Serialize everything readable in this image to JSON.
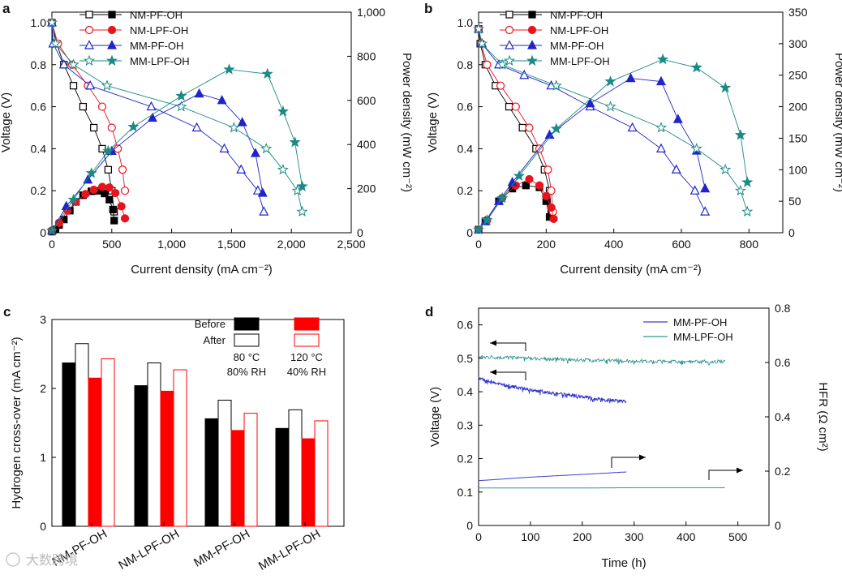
{
  "watermark": "大数跨境",
  "chart_data": [
    {
      "panel": "a",
      "type": "line",
      "xlabel": "Current density (mA cm⁻²)",
      "ylabel": "Voltage (V)",
      "y2label": "Power density (mW cm⁻²)",
      "xlim": [
        0,
        2500
      ],
      "ylim": [
        0,
        1.05
      ],
      "y2lim": [
        0,
        1000
      ],
      "xticks": [
        0,
        500,
        1000,
        1500,
        2000,
        2500
      ],
      "xtick_labels": [
        "0",
        "500",
        "1,000",
        "1,500",
        "2,000",
        "2,500"
      ],
      "yticks": [
        0,
        0.2,
        0.4,
        0.6,
        0.8,
        1.0
      ],
      "ytick_labels": [
        "0",
        "0.2",
        "0.4",
        "0.6",
        "0.8",
        "1.0"
      ],
      "y2ticks": [
        0,
        200,
        400,
        600,
        800,
        1000
      ],
      "y2tick_labels": [
        "0",
        "200",
        "400",
        "600",
        "800",
        "1,000"
      ],
      "legend": [
        {
          "name": "NM-PF-OH",
          "color": "#000000",
          "marker": "square"
        },
        {
          "name": "NM-LPF-OH",
          "color": "#e8141c",
          "marker": "circle"
        },
        {
          "name": "MM-PF-OH",
          "color": "#1f25c8",
          "marker": "triangle"
        },
        {
          "name": "MM-LPF-OH",
          "color": "#1a8a84",
          "marker": "star"
        }
      ],
      "series": [
        {
          "name": "NM-PF-OH",
          "color": "#000000",
          "marker": "square",
          "kind": "voltage",
          "x": [
            0,
            40,
            100,
            180,
            260,
            350,
            420,
            470,
            500,
            520
          ],
          "y": [
            1.0,
            0.9,
            0.8,
            0.7,
            0.6,
            0.5,
            0.4,
            0.3,
            0.2,
            0.1
          ]
        },
        {
          "name": "NM-PF-OH",
          "color": "#000000",
          "marker": "square",
          "kind": "power",
          "x": [
            0,
            30,
            60,
            100,
            150,
            200,
            260,
            330,
            390,
            440,
            480,
            510,
            520
          ],
          "y": [
            5,
            15,
            35,
            60,
            100,
            140,
            170,
            188,
            190,
            178,
            150,
            105,
            55
          ]
        },
        {
          "name": "NM-LPF-OH",
          "color": "#e8141c",
          "marker": "circle",
          "kind": "voltage",
          "x": [
            0,
            50,
            170,
            300,
            420,
            500,
            550,
            590,
            610
          ],
          "y": [
            1.0,
            0.9,
            0.8,
            0.7,
            0.6,
            0.5,
            0.4,
            0.3,
            0.2
          ]
        },
        {
          "name": "NM-LPF-OH",
          "color": "#e8141c",
          "marker": "circle",
          "kind": "power",
          "x": [
            0,
            60,
            130,
            200,
            280,
            350,
            420,
            480,
            530,
            580,
            610
          ],
          "y": [
            10,
            45,
            100,
            140,
            175,
            195,
            208,
            205,
            180,
            120,
            65
          ]
        },
        {
          "name": "MM-PF-OH",
          "color": "#1f25c8",
          "marker": "triangle",
          "kind": "voltage",
          "x": [
            0,
            10,
            100,
            320,
            830,
            1210,
            1440,
            1580,
            1720,
            1770
          ],
          "y": [
            1.0,
            0.9,
            0.8,
            0.7,
            0.6,
            0.5,
            0.4,
            0.3,
            0.2,
            0.1
          ]
        },
        {
          "name": "MM-PF-OH",
          "color": "#1f25c8",
          "marker": "triangle",
          "kind": "power",
          "x": [
            0,
            120,
            300,
            500,
            840,
            1230,
            1420,
            1590,
            1700,
            1760
          ],
          "y": [
            10,
            120,
            240,
            370,
            520,
            630,
            600,
            500,
            360,
            180
          ]
        },
        {
          "name": "MM-LPF-OH",
          "color": "#1a8a84",
          "marker": "star",
          "kind": "voltage",
          "x": [
            0,
            30,
            180,
            460,
            1080,
            1520,
            1790,
            1930,
            2050,
            2090
          ],
          "y": [
            1.0,
            0.9,
            0.8,
            0.7,
            0.6,
            0.5,
            0.4,
            0.3,
            0.2,
            0.1
          ]
        },
        {
          "name": "MM-LPF-OH",
          "color": "#1a8a84",
          "marker": "star",
          "kind": "power",
          "x": [
            0,
            180,
            330,
            470,
            680,
            1080,
            1480,
            1800,
            1930,
            2030,
            2090
          ],
          "y": [
            10,
            150,
            270,
            370,
            480,
            620,
            740,
            720,
            550,
            410,
            210
          ]
        }
      ]
    },
    {
      "panel": "b",
      "type": "line",
      "xlabel": "Current density (mA cm⁻²)",
      "ylabel": "Voltage (V)",
      "y2label": "Power density (mW cm⁻²)",
      "xlim": [
        0,
        900
      ],
      "ylim": [
        0,
        1.05
      ],
      "y2lim": [
        0,
        350
      ],
      "xticks": [
        0,
        200,
        400,
        600,
        800
      ],
      "xtick_labels": [
        "0",
        "200",
        "400",
        "600",
        "800"
      ],
      "yticks": [
        0,
        0.2,
        0.4,
        0.6,
        0.8,
        1.0
      ],
      "ytick_labels": [
        "0",
        "0.2",
        "0.4",
        "0.6",
        "0.8",
        "1.0"
      ],
      "y2ticks": [
        0,
        50,
        100,
        150,
        200,
        250,
        300,
        350
      ],
      "y2tick_labels": [
        "0",
        "50",
        "100",
        "150",
        "200",
        "250",
        "300",
        "350"
      ],
      "legend": [
        {
          "name": "NM-PF-OH",
          "color": "#000000",
          "marker": "square"
        },
        {
          "name": "NM-LPF-OH",
          "color": "#e8141c",
          "marker": "circle"
        },
        {
          "name": "MM-PF-OH",
          "color": "#1f25c8",
          "marker": "triangle"
        },
        {
          "name": "MM-LPF-OH",
          "color": "#1a8a84",
          "marker": "star"
        }
      ],
      "series": [
        {
          "name": "NM-PF-OH",
          "color": "#000000",
          "marker": "square",
          "kind": "voltage",
          "x": [
            0,
            5,
            20,
            50,
            90,
            130,
            170,
            195,
            210,
            215
          ],
          "y": [
            0.97,
            0.9,
            0.8,
            0.7,
            0.6,
            0.5,
            0.4,
            0.3,
            0.2,
            0.1
          ]
        },
        {
          "name": "NM-PF-OH",
          "color": "#000000",
          "marker": "square",
          "kind": "power",
          "x": [
            0,
            20,
            60,
            100,
            140,
            180,
            200,
            210
          ],
          "y": [
            5,
            18,
            50,
            70,
            75,
            72,
            50,
            25
          ]
        },
        {
          "name": "NM-LPF-OH",
          "color": "#e8141c",
          "marker": "circle",
          "kind": "voltage",
          "x": [
            0,
            8,
            25,
            65,
            110,
            150,
            180,
            205,
            215,
            220
          ],
          "y": [
            0.97,
            0.9,
            0.8,
            0.7,
            0.6,
            0.5,
            0.4,
            0.3,
            0.2,
            0.1
          ]
        },
        {
          "name": "NM-LPF-OH",
          "color": "#e8141c",
          "marker": "circle",
          "kind": "power",
          "x": [
            0,
            25,
            70,
            110,
            150,
            180,
            200,
            215,
            222
          ],
          "y": [
            5,
            20,
            55,
            75,
            85,
            75,
            58,
            40,
            22
          ]
        },
        {
          "name": "MM-PF-OH",
          "color": "#1f25c8",
          "marker": "triangle",
          "kind": "voltage",
          "x": [
            0,
            10,
            60,
            135,
            215,
            330,
            455,
            540,
            585,
            640,
            670
          ],
          "y": [
            0.97,
            0.9,
            0.8,
            0.75,
            0.7,
            0.6,
            0.5,
            0.4,
            0.3,
            0.2,
            0.1
          ]
        },
        {
          "name": "MM-PF-OH",
          "color": "#1f25c8",
          "marker": "triangle",
          "kind": "power",
          "x": [
            0,
            20,
            60,
            100,
            210,
            330,
            450,
            540,
            590,
            645,
            670
          ],
          "y": [
            5,
            18,
            50,
            80,
            155,
            205,
            245,
            240,
            180,
            130,
            70
          ]
        },
        {
          "name": "MM-LPF-OH",
          "color": "#1a8a84",
          "marker": "star",
          "kind": "voltage",
          "x": [
            0,
            10,
            70,
            230,
            390,
            540,
            645,
            730,
            775,
            795
          ],
          "y": [
            0.97,
            0.9,
            0.8,
            0.7,
            0.6,
            0.5,
            0.4,
            0.3,
            0.2,
            0.1
          ]
        },
        {
          "name": "MM-LPF-OH",
          "color": "#1a8a84",
          "marker": "star",
          "kind": "power",
          "x": [
            0,
            25,
            70,
            120,
            230,
            390,
            545,
            645,
            730,
            775,
            795
          ],
          "y": [
            5,
            20,
            55,
            90,
            165,
            240,
            275,
            262,
            230,
            155,
            80
          ]
        }
      ]
    },
    {
      "panel": "c",
      "type": "bar",
      "ylabel": "Hydrogen cross-over (mA cm⁻²)",
      "ylim": [
        0,
        3
      ],
      "yticks": [
        0,
        1,
        2,
        3
      ],
      "ytick_labels": [
        "0",
        "1",
        "2",
        "3"
      ],
      "categories": [
        "NM-PF-OH",
        "NM-LPF-OH",
        "MM-PF-OH",
        "MM-LPF-OH"
      ],
      "series": [
        {
          "name": "Before, 80 °C 80% RH",
          "style": "filled",
          "color": "#000000",
          "values": [
            2.37,
            2.04,
            1.56,
            1.42
          ]
        },
        {
          "name": "After, 80 °C 80% RH",
          "style": "outline",
          "color": "#000000",
          "values": [
            2.65,
            2.37,
            1.83,
            1.69
          ]
        },
        {
          "name": "Before, 120 °C 40% RH",
          "style": "filled",
          "color": "#ff0000",
          "values": [
            2.15,
            1.96,
            1.39,
            1.27
          ]
        },
        {
          "name": "After, 120 °C 40% RH",
          "style": "outline",
          "color": "#ff0000",
          "values": [
            2.43,
            2.27,
            1.64,
            1.53
          ]
        }
      ],
      "legend": {
        "rows": [
          "Before",
          "After"
        ],
        "conditions": [
          [
            "80 °C",
            "80% RH"
          ],
          [
            "120 °C",
            "40% RH"
          ]
        ],
        "colors": [
          "#000000",
          "#ff0000"
        ]
      }
    },
    {
      "panel": "d",
      "type": "line",
      "xlabel": "Time (h)",
      "ylabel": "Voltage (V)",
      "y2label": "HFR (Ω cm²)",
      "xlim": [
        0,
        560
      ],
      "ylim": [
        0,
        0.65
      ],
      "y2lim": [
        0,
        0.8
      ],
      "xticks": [
        0,
        100,
        200,
        300,
        400,
        500
      ],
      "xtick_labels": [
        "0",
        "100",
        "200",
        "300",
        "400",
        "500"
      ],
      "yticks": [
        0,
        0.1,
        0.2,
        0.3,
        0.4,
        0.5,
        0.6
      ],
      "ytick_labels": [
        "0",
        "0.1",
        "0.2",
        "0.3",
        "0.4",
        "0.5",
        "0.6"
      ],
      "y2ticks": [
        0,
        0.2,
        0.4,
        0.6,
        0.8
      ],
      "y2tick_labels": [
        "0",
        "0.2",
        "0.4",
        "0.6",
        "0.8"
      ],
      "legend": [
        {
          "name": "MM-PF-OH",
          "color": "#3a3fd0"
        },
        {
          "name": "MM-LPF-OH",
          "color": "#2a9a8f"
        }
      ],
      "series": [
        {
          "name": "MM-PF-OH",
          "kind": "voltage",
          "color": "#2a2fc8",
          "x": [
            0,
            50,
            100,
            150,
            200,
            250,
            285
          ],
          "y": [
            0.44,
            0.42,
            0.405,
            0.395,
            0.385,
            0.375,
            0.37
          ]
        },
        {
          "name": "MM-LPF-OH",
          "kind": "voltage",
          "color": "#1f8f87",
          "x": [
            0,
            100,
            200,
            300,
            400,
            475
          ],
          "y": [
            0.505,
            0.5,
            0.495,
            0.492,
            0.49,
            0.49
          ]
        },
        {
          "name": "MM-PF-OH",
          "kind": "hfr",
          "color": "#3a3fd0",
          "x": [
            0,
            100,
            200,
            285
          ],
          "y": [
            0.165,
            0.178,
            0.188,
            0.197
          ]
        },
        {
          "name": "MM-LPF-OH",
          "kind": "hfr",
          "color": "#2a9a8f",
          "x": [
            0,
            100,
            200,
            300,
            400,
            475
          ],
          "y": [
            0.138,
            0.138,
            0.138,
            0.139,
            0.139,
            0.139
          ]
        }
      ],
      "annotations": [
        {
          "arrow": "left",
          "axis": "voltage",
          "at_series": "MM-LPF-OH"
        },
        {
          "arrow": "left",
          "axis": "voltage",
          "at_series": "MM-PF-OH"
        },
        {
          "arrow": "right",
          "axis": "hfr",
          "at_series": "MM-PF-OH"
        },
        {
          "arrow": "right",
          "axis": "hfr",
          "at_series": "MM-LPF-OH"
        }
      ]
    }
  ]
}
